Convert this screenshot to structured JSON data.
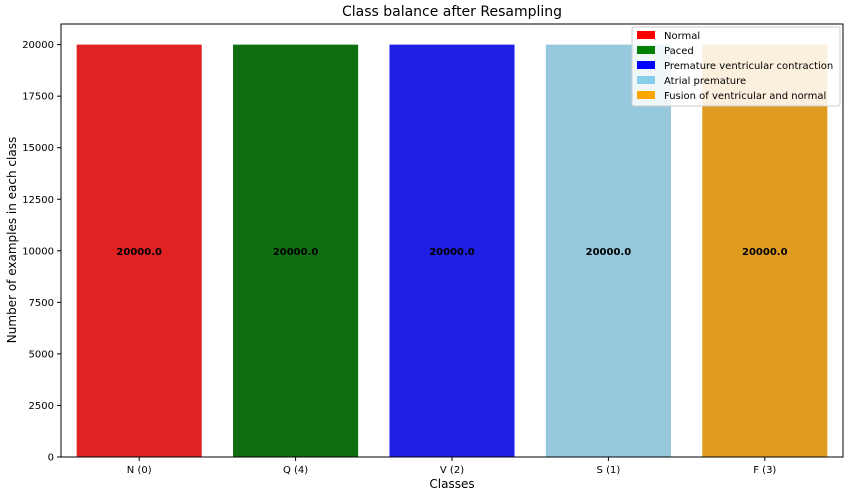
{
  "chart_data": {
    "type": "bar",
    "title": "Class balance after Resampling",
    "xlabel": "Classes",
    "ylabel": "Number of examples in each class",
    "categories": [
      "N (0)",
      "Q (4)",
      "V (2)",
      "S (1)",
      "F (3)"
    ],
    "values": [
      20000,
      20000,
      20000,
      20000,
      20000
    ],
    "data_labels": [
      "20000.0",
      "20000.0",
      "20000.0",
      "20000.0",
      "20000.0"
    ],
    "colors": [
      "#e02222",
      "#0f6e0f",
      "#2020e4",
      "#96c8de",
      "#e09c20"
    ],
    "ylim": [
      0,
      21000
    ],
    "yticks": [
      0,
      2500,
      5000,
      7500,
      10000,
      12500,
      15000,
      17500,
      20000
    ],
    "grid": false,
    "legend": {
      "placement": "top-right",
      "entries": [
        {
          "label": "Normal",
          "color": "#ff0000"
        },
        {
          "label": "Paced",
          "color": "#008000"
        },
        {
          "label": "Premature ventricular contraction",
          "color": "#0000ff"
        },
        {
          "label": "Atrial premature",
          "color": "#87ceeb"
        },
        {
          "label": "Fusion of ventricular and normal",
          "color": "#ffa500"
        }
      ]
    }
  }
}
